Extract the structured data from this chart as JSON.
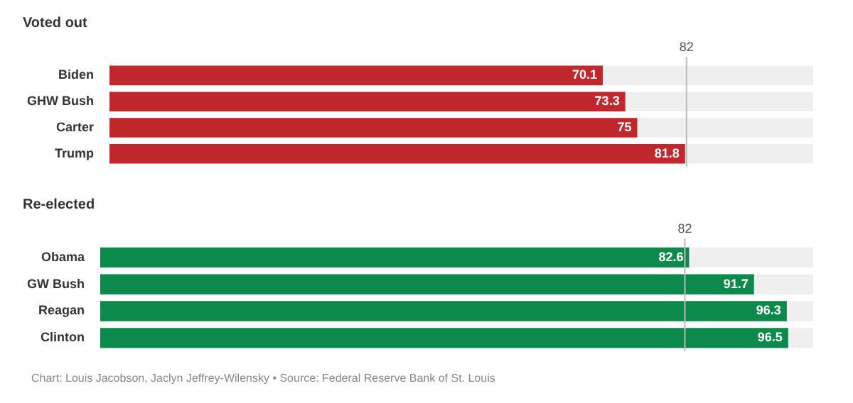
{
  "chart_data": [
    {
      "type": "bar",
      "orientation": "horizontal",
      "title": "Voted out",
      "categories": [
        "Biden",
        "GHW Bush",
        "Carter",
        "Trump"
      ],
      "values": [
        70.1,
        73.3,
        75,
        81.8
      ],
      "color": "#c0282d",
      "xlim": [
        0,
        100
      ],
      "tick_labels": "y",
      "data_labels": true,
      "ref_lines": [
        {
          "axis": "x",
          "value": 82,
          "label": "82",
          "color": "#bbbbbb"
        }
      ]
    },
    {
      "type": "bar",
      "orientation": "horizontal",
      "title": "Re-elected",
      "categories": [
        "Obama",
        "GW Bush",
        "Reagan",
        "Clinton"
      ],
      "values": [
        82.6,
        91.7,
        96.3,
        96.5
      ],
      "color": "#0b8a4c",
      "xlim": [
        0,
        100
      ],
      "tick_labels": "y",
      "data_labels": true,
      "ref_lines": [
        {
          "axis": "x",
          "value": 82,
          "label": "82",
          "color": "#bbbbbb"
        }
      ],
      "annotations": [
        "Chart: Louis Jacobson, Jaclyn Jeffrey-Wilensky • Source: Federal Reserve Bank of St. Louis"
      ]
    }
  ]
}
